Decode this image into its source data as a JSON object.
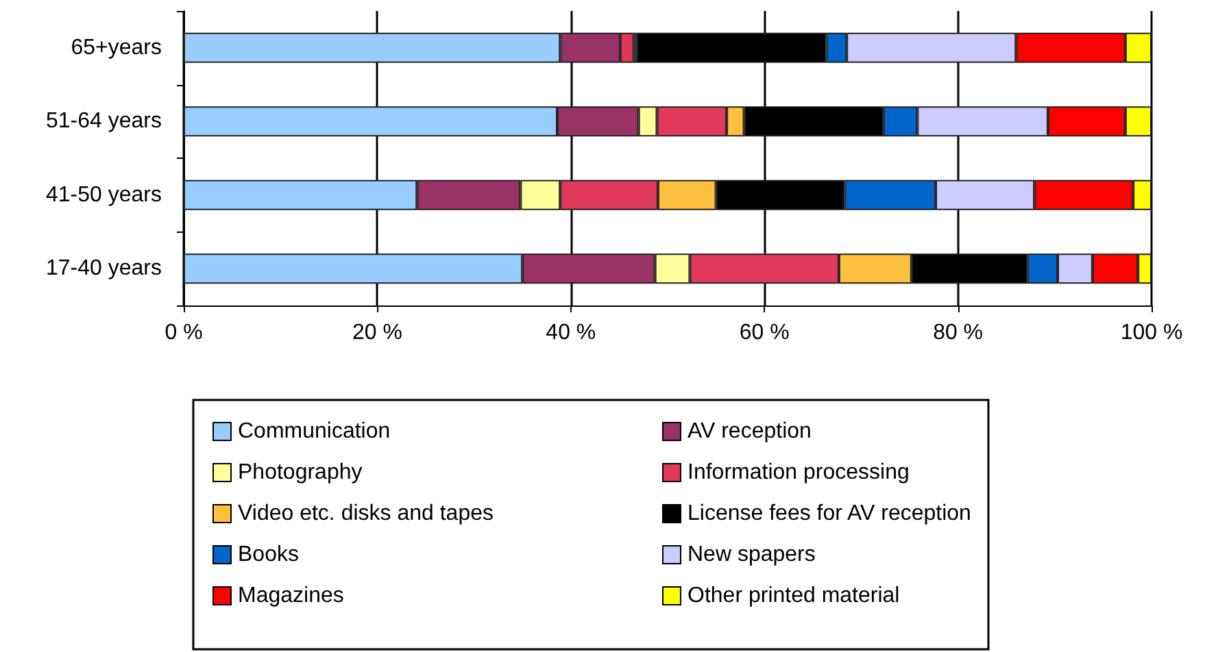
{
  "chart_data": {
    "type": "bar",
    "orientation": "horizontal",
    "stacked": true,
    "categories": [
      "65+years",
      "51-64 years",
      "41-50 years",
      "17-40 years"
    ],
    "series": [
      {
        "name": "Communication",
        "color": "#99ccff",
        "values": [
          38.9,
          38.6,
          24.1,
          35.0
        ]
      },
      {
        "name": "AV reception",
        "color": "#993366",
        "values": [
          6.2,
          8.4,
          10.7,
          13.7
        ]
      },
      {
        "name": "Photography",
        "color": "#ffff99",
        "values": [
          null,
          1.9,
          4.1,
          3.6
        ]
      },
      {
        "name": "Information processing",
        "color": "#e0395a",
        "values": [
          1.4,
          7.2,
          10.1,
          15.4
        ]
      },
      {
        "name": "Video etc. disks and tapes",
        "color": "#ffc040",
        "values": [
          0.3,
          1.8,
          6.0,
          7.5
        ]
      },
      {
        "name": "License fees for AV reception",
        "color": "#000000",
        "values": [
          19.6,
          14.4,
          13.3,
          12.0
        ]
      },
      {
        "name": "Books",
        "color": "#0066cc",
        "values": [
          2.1,
          3.5,
          9.4,
          3.1
        ]
      },
      {
        "name": "New spapers",
        "color": "#ccccff",
        "values": [
          17.5,
          13.5,
          10.2,
          3.6
        ]
      },
      {
        "name": "Magazines",
        "color": "#ff0000",
        "values": [
          11.3,
          8.0,
          10.2,
          4.7
        ]
      },
      {
        "name": "Other printed material",
        "color": "#ffff00",
        "values": [
          2.7,
          2.7,
          1.9,
          1.4
        ]
      }
    ],
    "xlim": [
      0,
      100
    ],
    "xticks": [
      {
        "value": 0,
        "label": "0 %"
      },
      {
        "value": 20,
        "label": "20 %"
      },
      {
        "value": 40,
        "label": "40 %"
      },
      {
        "value": 60,
        "label": "60 %"
      },
      {
        "value": 80,
        "label": "80 %"
      },
      {
        "value": 100,
        "label": "100 %"
      }
    ],
    "grid": "x",
    "legend": "bottom"
  }
}
